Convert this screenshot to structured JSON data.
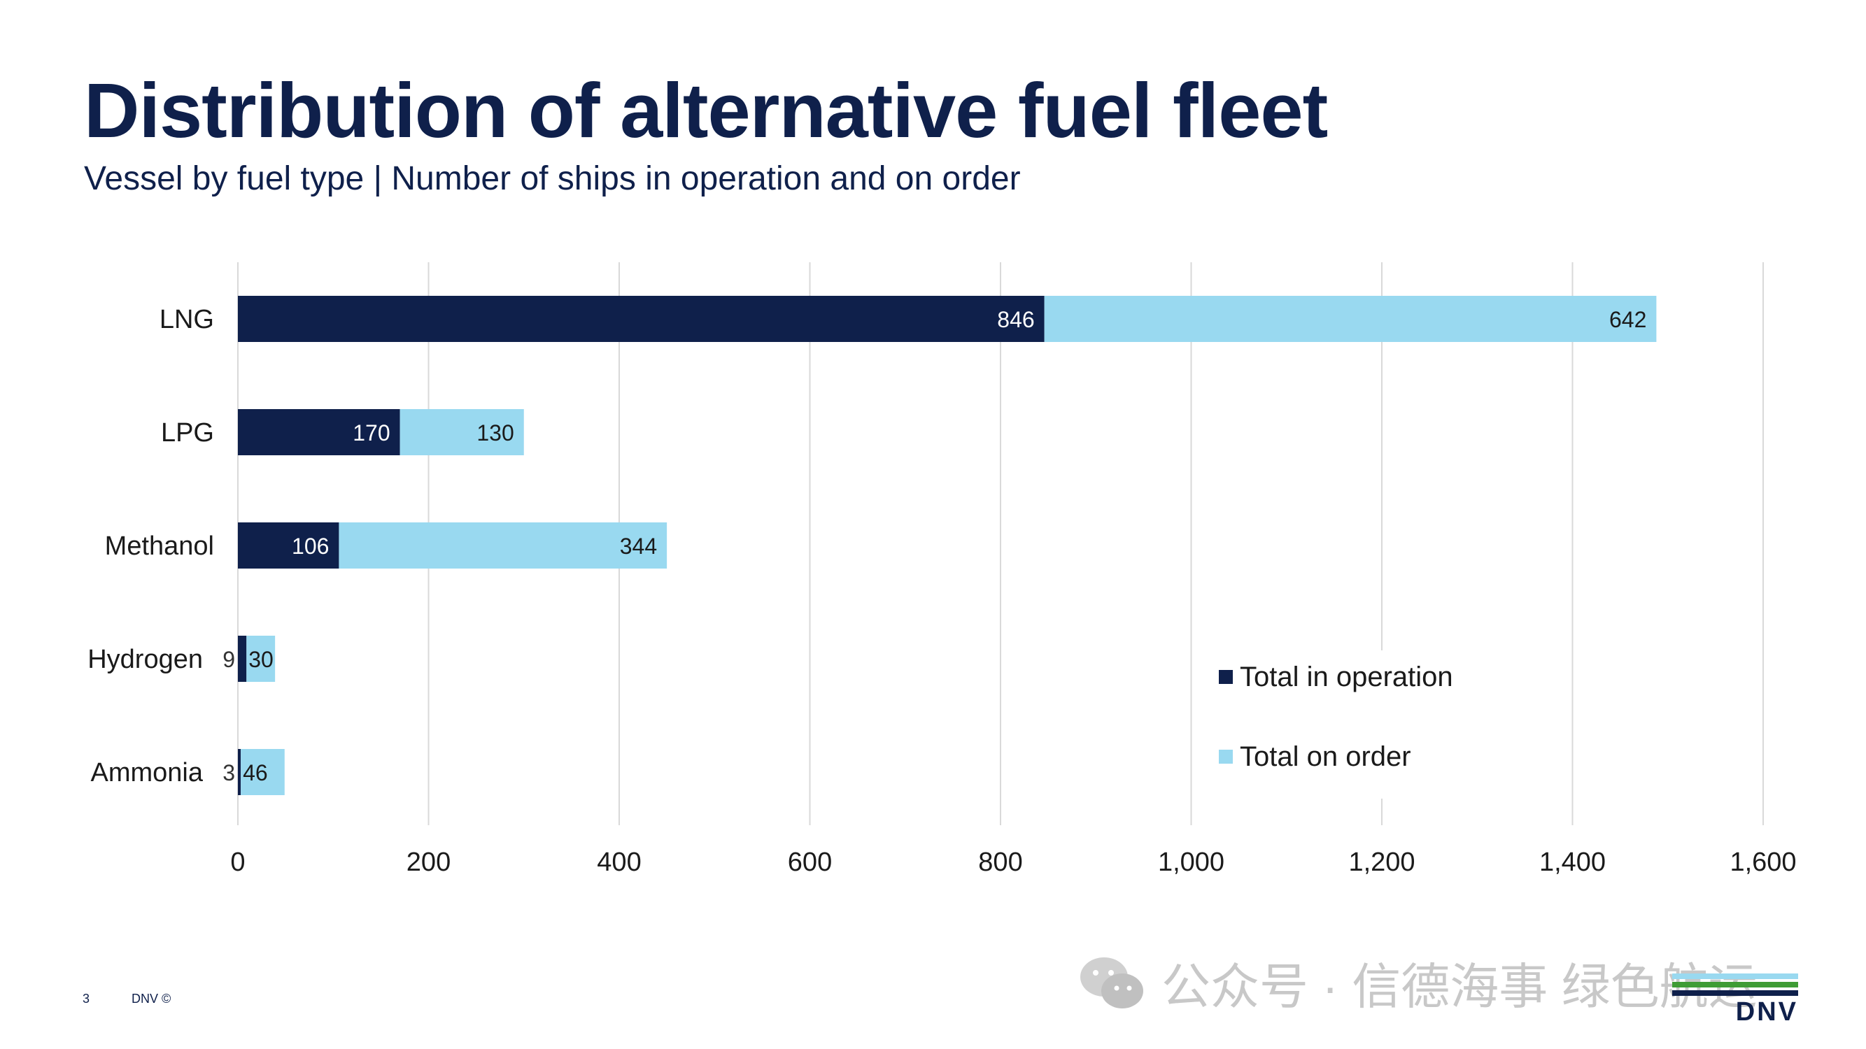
{
  "slide": {
    "title": "Distribution of alternative fuel fleet",
    "subtitle": "Vessel by fuel type | Number of ships in operation and on order",
    "page_number": "3",
    "brand_footer": "DNV ©",
    "watermark": "公众号 · 信德海事 绿色航运",
    "logo_text": "DNV",
    "logo_colors": [
      "#99d9f0",
      "#3f9c35",
      "#0f204b"
    ]
  },
  "chart_data": {
    "type": "bar",
    "orientation": "horizontal",
    "stacked": true,
    "categories": [
      "LNG",
      "LPG",
      "Methanol",
      "Hydrogen",
      "Ammonia"
    ],
    "series": [
      {
        "name": "Total in operation",
        "values": [
          846,
          170,
          106,
          9,
          3
        ],
        "color": "#0f204b"
      },
      {
        "name": "Total on order",
        "values": [
          642,
          130,
          344,
          30,
          46
        ],
        "color": "#99d9f0"
      }
    ],
    "xlim": [
      0,
      1600
    ],
    "x_ticks": [
      "0",
      "200",
      "400",
      "600",
      "800",
      "1,000",
      "1,200",
      "1,400",
      "1,600"
    ],
    "grid": true,
    "legend_position": "bottom-right"
  }
}
